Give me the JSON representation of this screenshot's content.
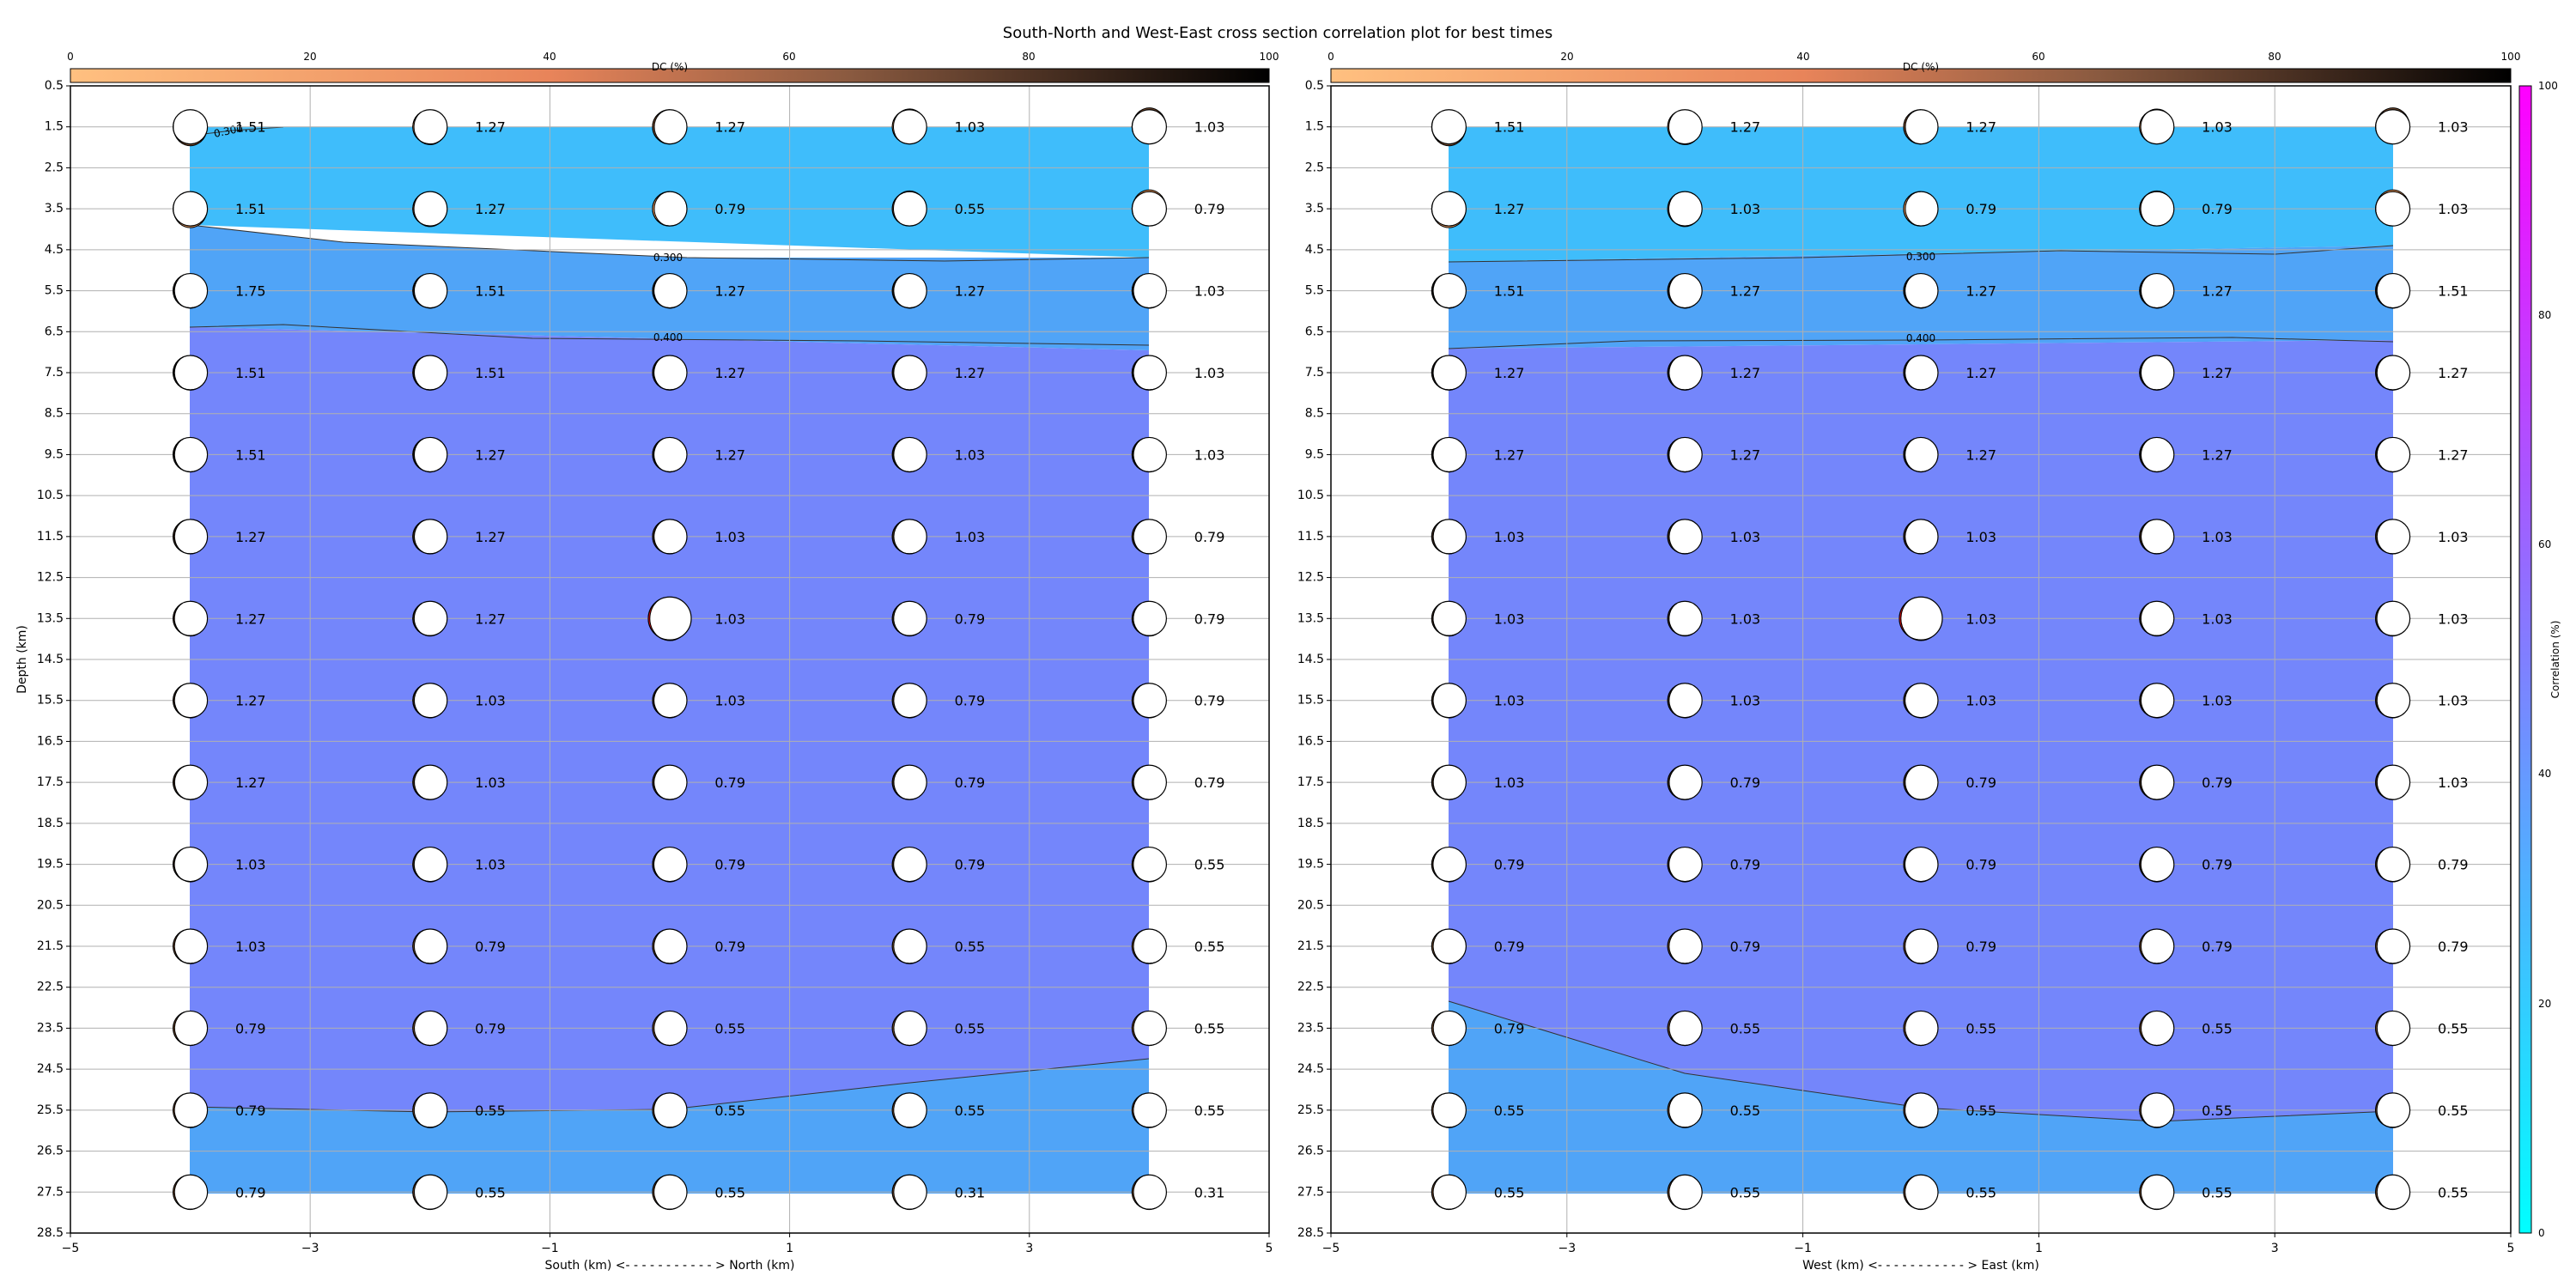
{
  "title": "South-North and West-East cross section correlation plot for best times",
  "chart_data": [
    {
      "type": "heatmap",
      "panel": "south-north",
      "xlabel": "South (km) <- - - - - - - - - - - > North (km)",
      "ylabel": "Depth (km)",
      "xlim": [
        -5,
        5
      ],
      "ylim": [
        28.5,
        0.5
      ],
      "x_ticks": [
        "−5",
        "−3",
        "−1",
        "1",
        "3",
        "5"
      ],
      "y_ticks": [
        "0.5",
        "1.5",
        "2.5",
        "3.5",
        "4.5",
        "5.5",
        "6.5",
        "7.5",
        "8.5",
        "9.5",
        "10.5",
        "11.5",
        "12.5",
        "13.5",
        "14.5",
        "15.5",
        "16.5",
        "17.5",
        "18.5",
        "19.5",
        "20.5",
        "21.5",
        "22.5",
        "23.5",
        "24.5",
        "25.5",
        "26.5",
        "27.5",
        "28.5"
      ],
      "colorbar_label": "DC (%)",
      "colorbar_ticks": [
        "0",
        "20",
        "40",
        "60",
        "80",
        "100"
      ],
      "x": [
        -4,
        -2,
        0,
        2,
        4
      ],
      "depths": [
        1.5,
        3.5,
        5.5,
        7.5,
        9.5,
        11.5,
        13.5,
        15.5,
        17.5,
        19.5,
        21.5,
        23.5,
        25.5,
        27.5
      ],
      "correlation": [
        [
          14,
          14,
          16,
          16,
          16
        ],
        [
          27,
          30,
          30,
          31,
          31
        ],
        [
          39,
          39,
          40,
          40,
          41
        ],
        [
          45,
          45,
          45,
          45,
          45
        ],
        [
          45,
          45,
          45,
          45,
          45
        ],
        [
          45,
          45,
          45,
          45,
          45
        ],
        [
          47,
          47,
          48,
          47,
          47
        ],
        [
          45,
          45,
          45,
          45,
          45
        ],
        [
          45,
          45,
          45,
          45,
          45
        ],
        [
          45,
          45,
          45,
          45,
          45
        ],
        [
          45,
          45,
          45,
          45,
          45
        ],
        [
          45,
          45,
          45,
          45,
          43
        ],
        [
          39,
          39,
          38,
          37,
          36
        ],
        [
          35,
          35,
          35,
          35,
          35
        ]
      ],
      "value_labels": [
        [
          "1.51",
          "1.27",
          "1.27",
          "1.03",
          "1.03"
        ],
        [
          "1.51",
          "1.27",
          "0.79",
          "0.55",
          "0.79"
        ],
        [
          "1.75",
          "1.51",
          "1.27",
          "1.27",
          "1.03"
        ],
        [
          "1.51",
          "1.51",
          "1.27",
          "1.27",
          "1.03"
        ],
        [
          "1.51",
          "1.27",
          "1.27",
          "1.03",
          "1.03"
        ],
        [
          "1.27",
          "1.27",
          "1.03",
          "1.03",
          "0.79"
        ],
        [
          "1.27",
          "1.27",
          "1.03",
          "0.79",
          "0.79"
        ],
        [
          "1.27",
          "1.03",
          "1.03",
          "0.79",
          "0.79"
        ],
        [
          "1.27",
          "1.03",
          "0.79",
          "0.79",
          "0.79"
        ],
        [
          "1.03",
          "1.03",
          "0.79",
          "0.79",
          "0.55"
        ],
        [
          "1.03",
          "0.79",
          "0.79",
          "0.55",
          "0.55"
        ],
        [
          "0.79",
          "0.79",
          "0.55",
          "0.55",
          "0.55"
        ],
        [
          "0.79",
          "0.55",
          "0.55",
          "0.55",
          "0.55"
        ],
        [
          "0.79",
          "0.55",
          "0.55",
          "0.31",
          "0.31"
        ]
      ],
      "contour_labels": [
        "0.300",
        "0.300",
        "0.400"
      ],
      "best_solution": {
        "x": 0,
        "depth": 13.5,
        "color": "#ff0000"
      }
    },
    {
      "type": "heatmap",
      "panel": "west-east",
      "xlabel": "West (km) <- - - - - - - - - - - > East (km)",
      "xlim": [
        -5,
        5
      ],
      "ylim": [
        28.5,
        0.5
      ],
      "x_ticks": [
        "−5",
        "−3",
        "−1",
        "1",
        "3",
        "5"
      ],
      "y_ticks": [
        "0.5",
        "1.5",
        "2.5",
        "3.5",
        "4.5",
        "5.5",
        "6.5",
        "7.5",
        "8.5",
        "9.5",
        "10.5",
        "11.5",
        "12.5",
        "13.5",
        "14.5",
        "15.5",
        "16.5",
        "17.5",
        "18.5",
        "19.5",
        "20.5",
        "21.5",
        "22.5",
        "23.5",
        "24.5",
        "25.5",
        "26.5",
        "27.5",
        "28.5"
      ],
      "colorbar_label": "DC (%)",
      "colorbar_ticks": [
        "0",
        "20",
        "40",
        "60",
        "80",
        "100"
      ],
      "x": [
        -4,
        -2,
        0,
        2,
        4
      ],
      "depths": [
        1.5,
        3.5,
        5.5,
        7.5,
        9.5,
        11.5,
        13.5,
        15.5,
        17.5,
        19.5,
        21.5,
        23.5,
        25.5,
        27.5
      ],
      "correlation": [
        [
          14,
          14,
          16,
          16,
          16
        ],
        [
          27,
          27,
          30,
          30,
          31
        ],
        [
          39,
          39,
          40,
          40,
          41
        ],
        [
          45,
          45,
          45,
          45,
          45
        ],
        [
          45,
          45,
          45,
          45,
          45
        ],
        [
          45,
          45,
          45,
          45,
          45
        ],
        [
          47,
          47,
          48,
          47,
          47
        ],
        [
          45,
          45,
          45,
          45,
          45
        ],
        [
          45,
          45,
          45,
          45,
          45
        ],
        [
          45,
          45,
          45,
          45,
          45
        ],
        [
          45,
          45,
          45,
          45,
          45
        ],
        [
          38,
          43,
          45,
          45,
          45
        ],
        [
          36,
          37,
          39,
          40,
          39
        ],
        [
          35,
          35,
          35,
          35,
          35
        ]
      ],
      "value_labels": [
        [
          "1.51",
          "1.27",
          "1.27",
          "1.03",
          "1.03"
        ],
        [
          "1.27",
          "1.03",
          "0.79",
          "0.79",
          "1.03"
        ],
        [
          "1.51",
          "1.27",
          "1.27",
          "1.27",
          "1.51"
        ],
        [
          "1.27",
          "1.27",
          "1.27",
          "1.27",
          "1.27"
        ],
        [
          "1.27",
          "1.27",
          "1.27",
          "1.27",
          "1.27"
        ],
        [
          "1.03",
          "1.03",
          "1.03",
          "1.03",
          "1.03"
        ],
        [
          "1.03",
          "1.03",
          "1.03",
          "1.03",
          "1.03"
        ],
        [
          "1.03",
          "1.03",
          "1.03",
          "1.03",
          "1.03"
        ],
        [
          "1.03",
          "0.79",
          "0.79",
          "0.79",
          "1.03"
        ],
        [
          "0.79",
          "0.79",
          "0.79",
          "0.79",
          "0.79"
        ],
        [
          "0.79",
          "0.79",
          "0.79",
          "0.79",
          "0.79"
        ],
        [
          "0.79",
          "0.55",
          "0.55",
          "0.55",
          "0.55"
        ],
        [
          "0.55",
          "0.55",
          "0.55",
          "0.55",
          "0.55"
        ],
        [
          "0.55",
          "0.55",
          "0.55",
          "0.55",
          "0.55"
        ]
      ],
      "contour_labels": [
        "0.300",
        "0.400"
      ],
      "best_solution": {
        "x": 0,
        "depth": 13.5,
        "color": "#ff0000"
      }
    }
  ],
  "correlation_colorbar": {
    "label": "Correlation (%)",
    "ticks": [
      "0",
      "20",
      "40",
      "60",
      "80",
      "100"
    ],
    "colors": [
      "#00ffff",
      "#ff00ff"
    ]
  },
  "colors": {
    "fill_low": "#3fbdfb",
    "fill_mid": "#50a4f7",
    "fill_high": "#7486fb",
    "beachball_dark": "#1c1410",
    "beachball_mid": "#7a4e30",
    "beachball_light": "#f4a060",
    "best": "#ff0000"
  }
}
